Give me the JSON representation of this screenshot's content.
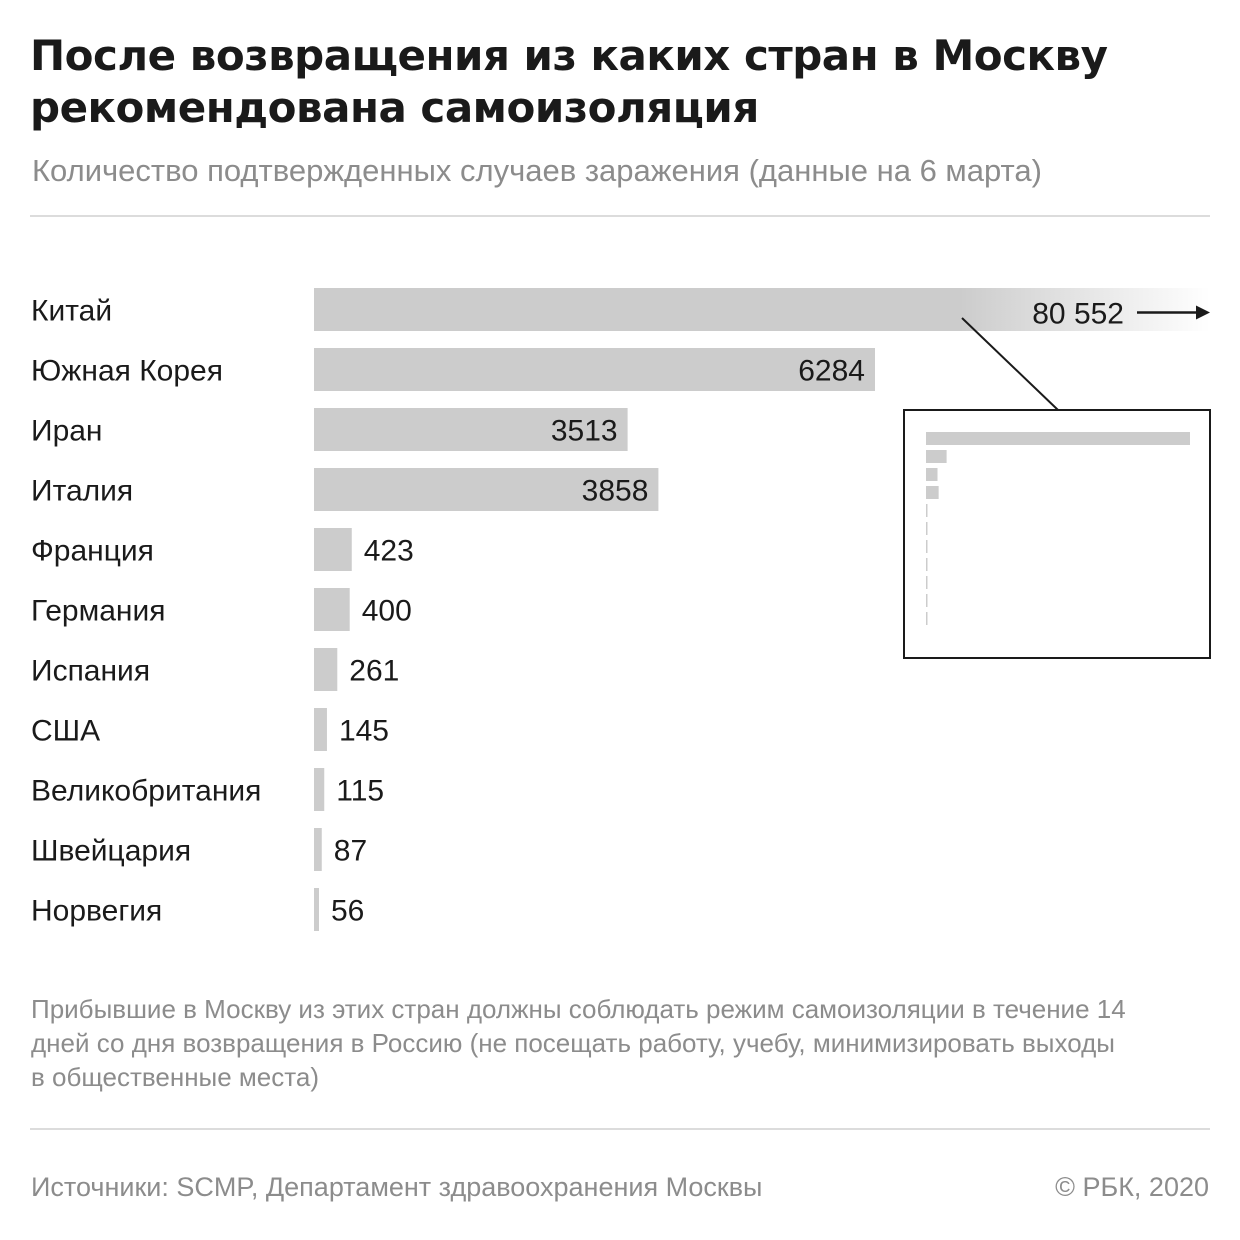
{
  "header": {
    "title": "После возвращения из каких стран в Москву рекомендована самоизоляция",
    "subtitle": "Количество подтвержденных случаев заражения (данные на 6 марта)"
  },
  "chart_data": {
    "type": "bar",
    "orientation": "horizontal",
    "categories": [
      "Китай",
      "Южная Корея",
      "Иран",
      "Италия",
      "Франция",
      "Германия",
      "Испания",
      "США",
      "Великобритания",
      "Швейцария",
      "Норвегия"
    ],
    "values": [
      80552,
      6284,
      3513,
      3858,
      423,
      400,
      261,
      145,
      115,
      87,
      56
    ],
    "value_labels": [
      "80 552",
      "6284",
      "3513",
      "3858",
      "423",
      "400",
      "261",
      "145",
      "115",
      "87",
      "56"
    ],
    "xlim": [
      0,
      10000
    ],
    "truncated_categories": [
      "Китай"
    ],
    "bar_color": "#cccccc",
    "grid": false,
    "legend": "none",
    "inset": {
      "type": "bar",
      "orientation": "horizontal",
      "xlim": [
        0,
        80552
      ],
      "description_free": true
    }
  },
  "footer": {
    "note": "Прибывшие в Москву из этих стран должны соблюдать режим самоизоляции в течение 14 дней со дня возвращения в Россию (не посещать работу, учебу, минимизировать выходы в общественные места)",
    "source": "Источники: SCMP, Департамент здравоохранения Москвы",
    "copyright": "© РБК, 2020"
  },
  "colors": {
    "bar": "#cccccc",
    "text": "#1a1a1a",
    "muted": "#8c8c8c",
    "rule": "#dcdcdc"
  }
}
